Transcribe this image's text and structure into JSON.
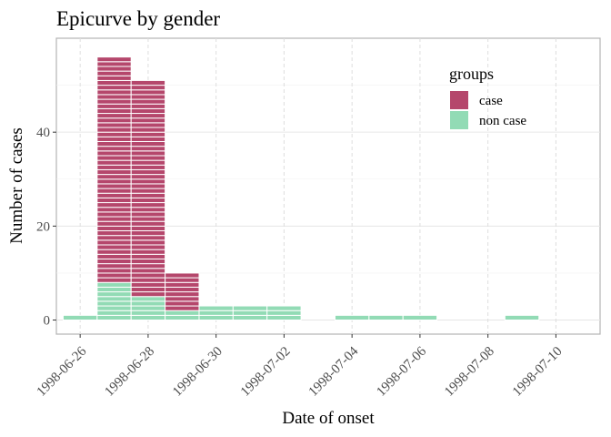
{
  "chart_data": {
    "type": "bar",
    "title": "Epicurve by gender",
    "xlabel": "Date of onset",
    "ylabel": "Number of cases",
    "x_ticks": [
      "1998-06-26",
      "1998-06-28",
      "1998-06-30",
      "1998-07-02",
      "1998-07-04",
      "1998-07-06",
      "1998-07-08",
      "1998-07-10"
    ],
    "y_ticks": [
      0,
      20,
      40
    ],
    "ylim": [
      -3,
      60
    ],
    "xlim": [
      "1998-06-25.3",
      "1998-07-11.3"
    ],
    "grid": true,
    "stacked": true,
    "legend": {
      "title": "groups",
      "position": "top-right"
    },
    "categories": [
      "1998-06-26",
      "1998-06-27",
      "1998-06-28",
      "1998-06-29",
      "1998-06-30",
      "1998-07-01",
      "1998-07-02",
      "1998-07-03",
      "1998-07-04",
      "1998-07-05",
      "1998-07-06",
      "1998-07-07",
      "1998-07-08",
      "1998-07-09",
      "1998-07-10"
    ],
    "series": [
      {
        "name": "non case",
        "color": "#92dbb5",
        "values": [
          1,
          8,
          5,
          2,
          3,
          3,
          3,
          0,
          1,
          1,
          1,
          0,
          0,
          1,
          0
        ]
      },
      {
        "name": "case",
        "color": "#b5476c",
        "values": [
          0,
          48,
          46,
          8,
          0,
          0,
          0,
          0,
          0,
          0,
          0,
          0,
          0,
          0,
          0
        ]
      }
    ]
  }
}
